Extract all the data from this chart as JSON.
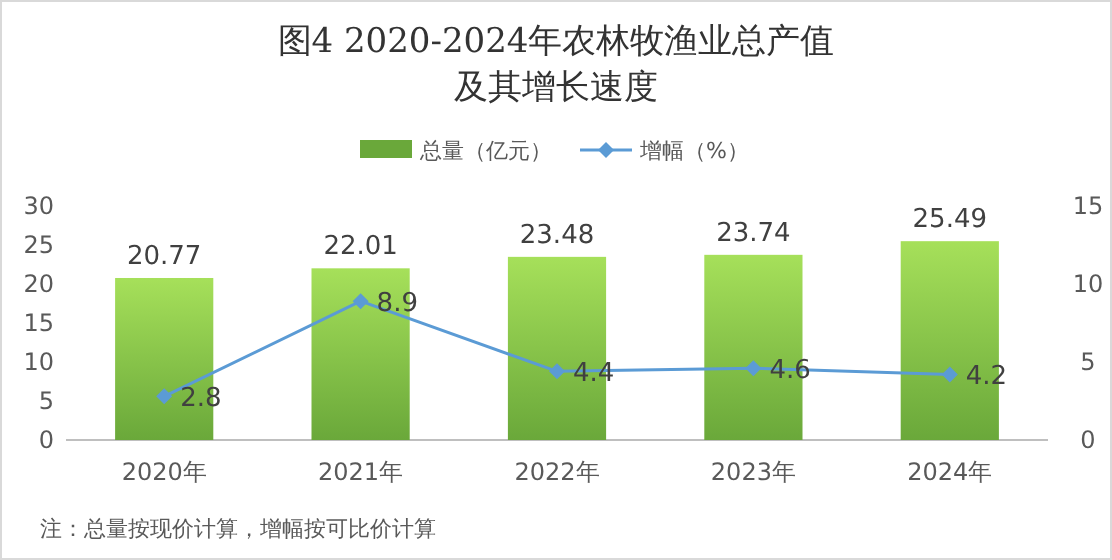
{
  "chart_data": {
    "type": "bar",
    "title": "图4 2020-2024年农林牧渔业总产值及其增长速度",
    "categories": [
      "2020年",
      "2021年",
      "2022年",
      "2023年",
      "2024年"
    ],
    "series": [
      {
        "name": "总量（亿元）",
        "color": "#6aa83a",
        "values": [
          20.77,
          22.01,
          23.48,
          23.74,
          25.49
        ]
      },
      {
        "name": "增幅（%）",
        "type": "line",
        "axis": "y2",
        "color": "#5b9bd5",
        "marker": "diamond",
        "values": [
          2.8,
          8.9,
          4.4,
          4.6,
          4.2
        ]
      }
    ],
    "ylim": [
      0,
      30
    ],
    "yticks": [
      0,
      5,
      10,
      15,
      20,
      25,
      30
    ],
    "y2lim": [
      0,
      15
    ],
    "y2ticks": [
      0,
      5,
      10,
      15
    ],
    "data_labels": true,
    "legend": "top",
    "grid": false,
    "annotations": [
      "注：总量按现价计算，增幅按可比价计算"
    ]
  }
}
